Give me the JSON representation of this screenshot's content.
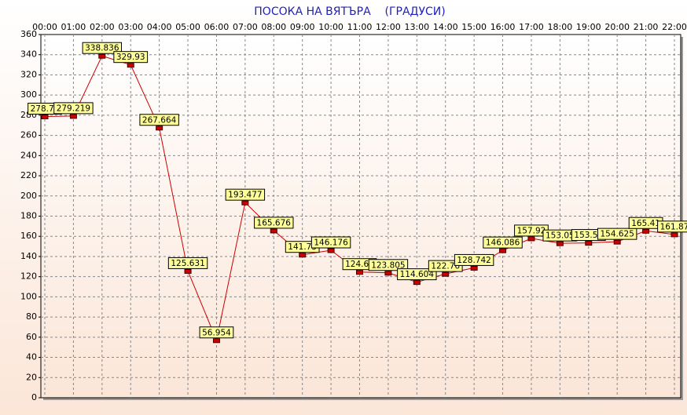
{
  "chart_data": {
    "type": "line",
    "title": "ПОСОКА НА ВЯТЪРА    (ГРАДУСИ)",
    "categories": [
      "00:00",
      "01:00",
      "02:00",
      "03:00",
      "04:00",
      "05:00",
      "06:00",
      "07:00",
      "08:00",
      "09:00",
      "10:00",
      "11:00",
      "12:00",
      "13:00",
      "14:00",
      "15:00",
      "16:00",
      "17:00",
      "18:00",
      "19:00",
      "20:00",
      "21:00",
      "22:00"
    ],
    "series": [
      {
        "name": "Посока на вятъра",
        "color": "#cc0000",
        "values": [
          278.75,
          279.219,
          338.836,
          329.93,
          267.664,
          125.631,
          56.954,
          193.477,
          165.676,
          141.73,
          146.176,
          124.63,
          123.805,
          114.604,
          122.76,
          128.742,
          146.086,
          157.92,
          153.05,
          153.51,
          154.625,
          165.41,
          161.87
        ]
      }
    ],
    "ylim": [
      0,
      360
    ],
    "yticks": [
      0,
      20,
      40,
      60,
      80,
      100,
      120,
      140,
      160,
      180,
      200,
      220,
      240,
      260,
      280,
      300,
      320,
      340,
      360
    ],
    "grid": true
  }
}
